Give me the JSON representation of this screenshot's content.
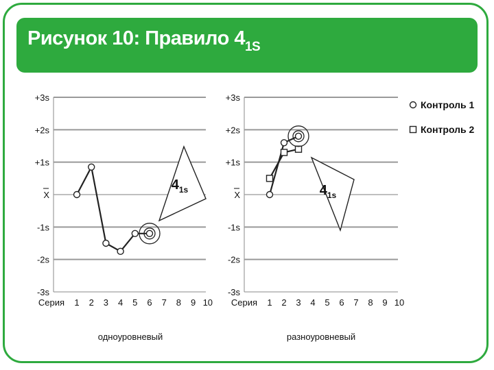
{
  "title": {
    "main": "Рисунок 10: Правило 4",
    "sub": "1S"
  },
  "colors": {
    "accent": "#2eaa3e",
    "grid": "#999999",
    "line": "#222222"
  },
  "legend": [
    {
      "symbol": "circle",
      "label": "Контроль 1"
    },
    {
      "symbol": "square",
      "label": "Контроль 2"
    }
  ],
  "chart_data": [
    {
      "type": "line",
      "xlabel": "Серия",
      "caption": "одноуровневый",
      "categories": [
        1,
        2,
        3,
        4,
        5,
        6,
        7,
        8,
        9,
        10
      ],
      "ylim": [
        -3,
        3
      ],
      "yticks": [
        {
          "value": 3,
          "label": "+3s"
        },
        {
          "value": 2,
          "label": "+2s"
        },
        {
          "value": 1,
          "label": "+1s"
        },
        {
          "value": 0,
          "label": "X"
        },
        {
          "value": -1,
          "label": "-1s"
        },
        {
          "value": -2,
          "label": "-2s"
        },
        {
          "value": -3,
          "label": "-3s"
        }
      ],
      "series": [
        {
          "marker": "circle",
          "x": [
            1,
            2,
            3,
            4,
            5,
            6
          ],
          "y": [
            0,
            0.85,
            -1.5,
            -1.75,
            -1.2,
            -1.2
          ]
        }
      ],
      "annotation": {
        "label": "4",
        "sub": "1s",
        "highlight_x": 6,
        "highlight_y": -1.2
      }
    },
    {
      "type": "line",
      "xlabel": "Серия",
      "caption": "разноуровневый",
      "categories": [
        1,
        2,
        3,
        4,
        5,
        6,
        7,
        8,
        9,
        10
      ],
      "ylim": [
        -3,
        3
      ],
      "yticks": [
        {
          "value": 3,
          "label": "+3s"
        },
        {
          "value": 2,
          "label": "+2s"
        },
        {
          "value": 1,
          "label": "+1s"
        },
        {
          "value": 0,
          "label": "X"
        },
        {
          "value": -1,
          "label": "-1s"
        },
        {
          "value": -2,
          "label": "-2s"
        },
        {
          "value": -3,
          "label": "-3s"
        }
      ],
      "series": [
        {
          "marker": "circle",
          "x": [
            1,
            2,
            3
          ],
          "y": [
            0,
            1.6,
            1.8
          ]
        },
        {
          "marker": "square",
          "x": [
            1,
            2,
            3
          ],
          "y": [
            0.5,
            1.3,
            1.4
          ]
        }
      ],
      "annotation": {
        "label": "4",
        "sub": "1s",
        "highlight_x": 3,
        "highlight_y": 1.8
      }
    }
  ]
}
